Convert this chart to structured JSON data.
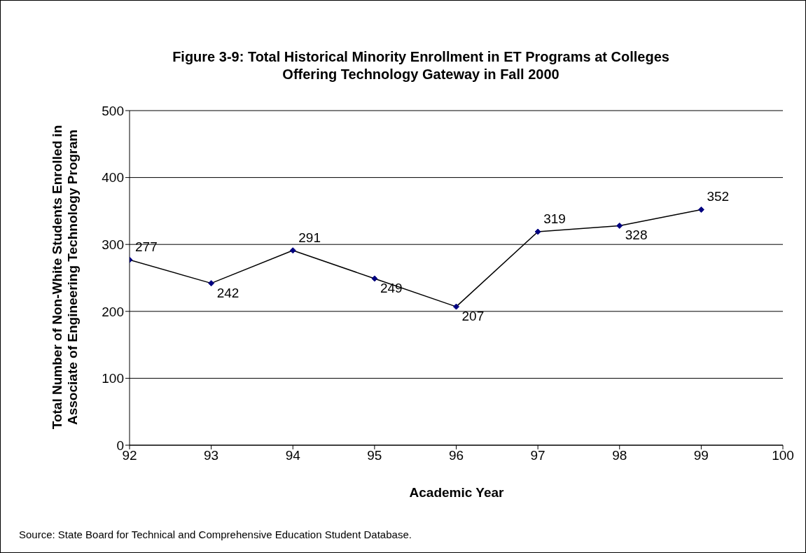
{
  "chart_data": {
    "type": "line",
    "title": "Figure 3-9:  Total Historical Minority Enrollment in ET Programs at Colleges Offering Technology Gateway in Fall 2000",
    "xlabel": "Academic Year",
    "ylabel": "Total Number of Non-White Students Enrolled in Associate of Engineering Technology Program",
    "annotations": [
      "Source:  State Board for Technical and Comprehensive Education Student Database."
    ],
    "x": [
      92,
      93,
      94,
      95,
      96,
      97,
      98,
      99
    ],
    "series": [
      {
        "color": "#000080",
        "values": [
          277,
          242,
          291,
          249,
          207,
          319,
          328,
          352
        ]
      }
    ],
    "xlim": [
      92,
      100
    ],
    "xticks": [
      92,
      93,
      94,
      95,
      96,
      97,
      98,
      99,
      100
    ],
    "ylim": [
      0,
      500
    ],
    "yticks": [
      0,
      100,
      200,
      300,
      400,
      500
    ],
    "grid": "y",
    "legend": false,
    "marker": "diamond",
    "line_style": "solid",
    "data_labels": true
  }
}
